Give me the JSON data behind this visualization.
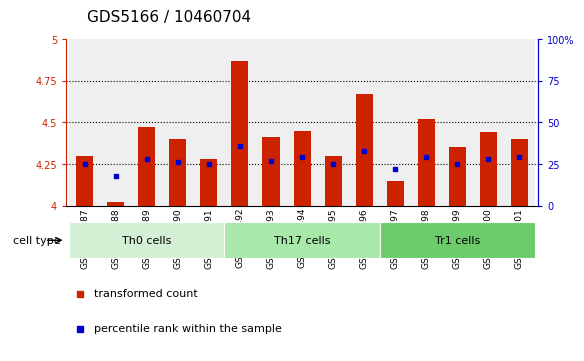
{
  "title": "GDS5166 / 10460704",
  "samples": [
    "GSM1350487",
    "GSM1350488",
    "GSM1350489",
    "GSM1350490",
    "GSM1350491",
    "GSM1350492",
    "GSM1350493",
    "GSM1350494",
    "GSM1350495",
    "GSM1350496",
    "GSM1350497",
    "GSM1350498",
    "GSM1350499",
    "GSM1350500",
    "GSM1350501"
  ],
  "cell_types": [
    {
      "label": "Th0 cells",
      "start": 0,
      "end": 5,
      "color": "#d4f0d4"
    },
    {
      "label": "Th17 cells",
      "start": 5,
      "end": 10,
      "color": "#a8e8a8"
    },
    {
      "label": "Tr1 cells",
      "start": 10,
      "end": 15,
      "color": "#6ccc6c"
    }
  ],
  "bar_values": [
    4.3,
    4.02,
    4.47,
    4.4,
    4.28,
    4.87,
    4.41,
    4.45,
    4.3,
    4.67,
    4.15,
    4.52,
    4.35,
    4.44,
    4.4
  ],
  "percentile_values": [
    4.25,
    4.18,
    4.28,
    4.26,
    4.25,
    4.36,
    4.27,
    4.29,
    4.25,
    4.33,
    4.22,
    4.29,
    4.25,
    4.28,
    4.29
  ],
  "bar_color": "#cc2200",
  "marker_color": "#0000cc",
  "ylim": [
    4.0,
    5.0
  ],
  "yticks_left": [
    4.0,
    4.25,
    4.5,
    4.75,
    5.0
  ],
  "ytick_left_labels": [
    "4",
    "4.25",
    "4.5",
    "4.75",
    "5"
  ],
  "ytick_right_labels": [
    "0",
    "25",
    "50",
    "75",
    "100%"
  ],
  "hlines": [
    4.25,
    4.5,
    4.75
  ],
  "bar_width": 0.55,
  "title_fontsize": 11,
  "tick_fontsize": 7,
  "label_fontsize": 8,
  "legend_items": [
    "transformed count",
    "percentile rank within the sample"
  ],
  "legend_colors": [
    "#cc2200",
    "#0000cc"
  ],
  "cell_type_label": "cell type",
  "axis_color_left": "#cc2200",
  "axis_color_right": "#0000cc",
  "bar_bottom": 4.0,
  "col_bg_color": "#d8d8d8",
  "col_bg_alpha": 0.4
}
